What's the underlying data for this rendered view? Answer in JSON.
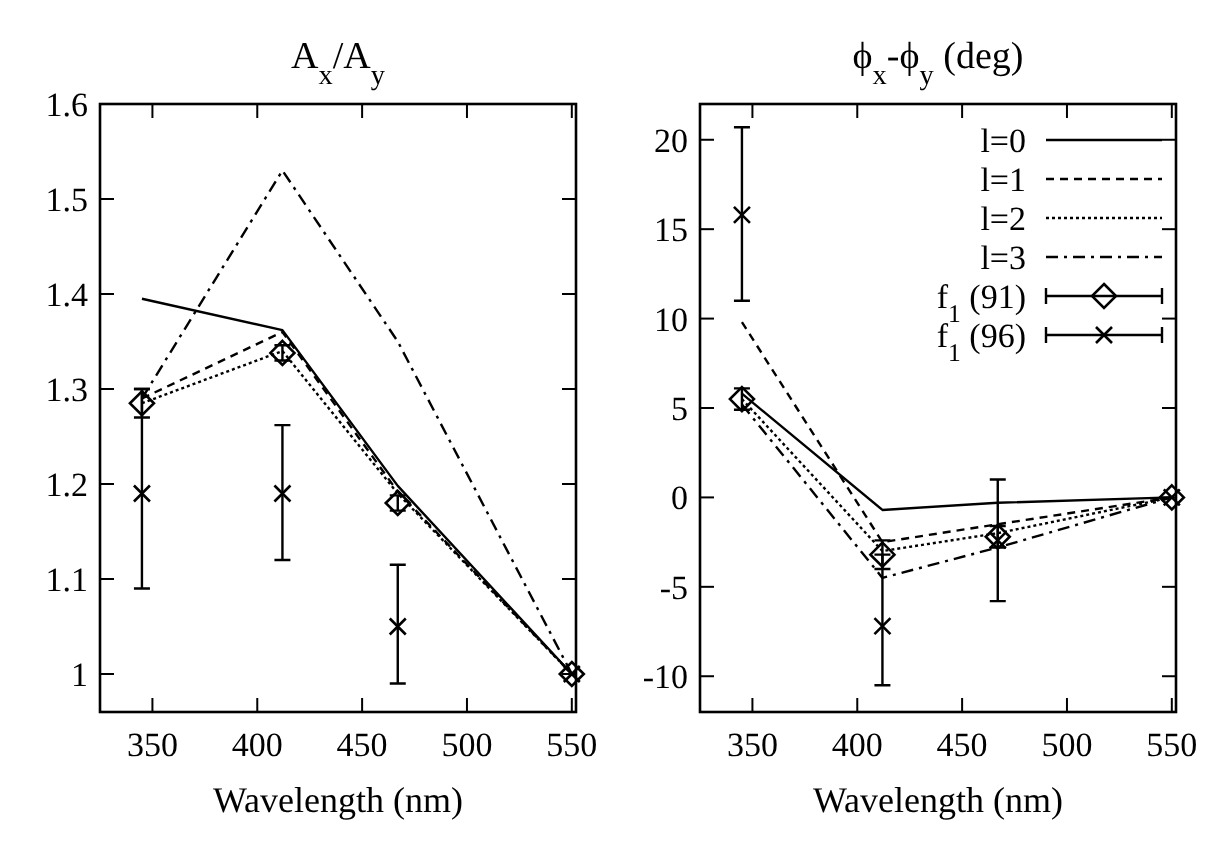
{
  "chart_data": [
    {
      "type": "line",
      "title": "A$_{x}$/A$_{y}$",
      "xlabel": "Wavelength (nm)",
      "x": [
        345,
        412,
        467,
        550
      ],
      "xlim": [
        325,
        552
      ],
      "xticks": [
        350,
        400,
        450,
        500,
        550
      ],
      "ylim": [
        0.96,
        1.6
      ],
      "yticks": [
        1,
        1.1,
        1.2,
        1.3,
        1.4,
        1.5,
        1.6
      ],
      "grid": false,
      "legend": false,
      "series": [
        {
          "color": "#000000",
          "line_style": "solid",
          "values": [
            1.395,
            1.362,
            1.198,
            1.0
          ]
        },
        {
          "color": "#000000",
          "line_style": "dashed",
          "values": [
            1.29,
            1.36,
            1.192,
            1.0
          ]
        },
        {
          "color": "#000000",
          "line_style": "dotted",
          "values": [
            1.285,
            1.34,
            1.19,
            1.0
          ]
        },
        {
          "color": "#000000",
          "line_style": "dashdot",
          "values": [
            1.29,
            1.53,
            1.35,
            1.0
          ]
        },
        {
          "type": "scatter",
          "marker": "diamond",
          "color": "#000000",
          "values": [
            1.285,
            1.338,
            1.18,
            1.0
          ],
          "errors": [
            0.015,
            0.008,
            0.008,
            null
          ]
        },
        {
          "type": "scatter",
          "marker": "cross",
          "color": "#000000",
          "values": [
            1.19,
            1.19,
            1.05,
            1.0
          ],
          "errors": [
            [
              1.09,
              1.3
            ],
            [
              1.12,
              1.262
            ],
            [
              0.99,
              1.115
            ],
            null
          ]
        }
      ]
    },
    {
      "type": "line",
      "title": "ϕ$_{x}$-ϕ$_{y}$ (deg)",
      "xlabel": "Wavelength (nm)",
      "x": [
        345,
        412,
        467,
        550
      ],
      "xlim": [
        325,
        552
      ],
      "xticks": [
        350,
        400,
        450,
        500,
        550
      ],
      "ylim": [
        -12,
        22
      ],
      "yticks": [
        -10,
        -5,
        0,
        5,
        10,
        15,
        20
      ],
      "grid": false,
      "legend": "top right",
      "series": [
        {
          "name": "l=0",
          "color": "#000000",
          "line_style": "solid",
          "values": [
            5.8,
            -0.7,
            -0.3,
            0
          ]
        },
        {
          "name": "l=1",
          "color": "#000000",
          "line_style": "dashed",
          "values": [
            9.8,
            -2.5,
            -1.5,
            0
          ]
        },
        {
          "name": "l=2",
          "color": "#000000",
          "line_style": "dotted",
          "values": [
            5.5,
            -3.0,
            -2.0,
            0
          ]
        },
        {
          "name": "l=3",
          "color": "#000000",
          "line_style": "dashdot",
          "values": [
            5.2,
            -4.5,
            -2.8,
            0
          ]
        },
        {
          "name": "f$_{1}$ (91)",
          "type": "scatter",
          "marker": "diamond",
          "color": "#000000",
          "values": [
            5.5,
            -3.2,
            -2.2,
            0
          ],
          "errors": [
            0.6,
            0.8,
            0.6,
            null
          ]
        },
        {
          "name": "f$_{1}$ (96)",
          "type": "scatter",
          "marker": "cross",
          "color": "#000000",
          "values": [
            15.8,
            -7.2,
            -2.4,
            0
          ],
          "errors": [
            [
              11,
              20.7
            ],
            [
              -10.5,
              -3.2
            ],
            [
              -5.8,
              1
            ],
            null
          ]
        }
      ]
    }
  ]
}
